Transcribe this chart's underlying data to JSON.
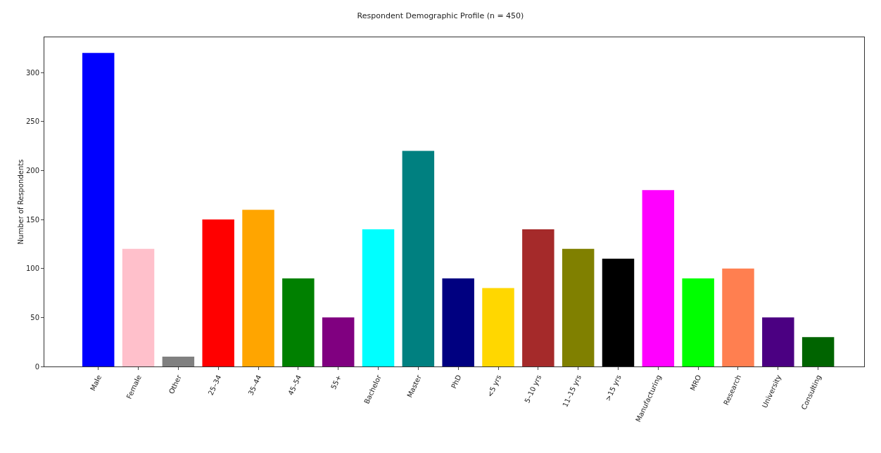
{
  "chart_data": {
    "type": "bar",
    "title": "Respondent Demographic Profile (n = 450)",
    "ylabel": "Number of Respondents",
    "categories": [
      "Male",
      "Female",
      "Other",
      "25–34",
      "35–44",
      "45–54",
      "55+",
      "Bachelor",
      "Master",
      "PhD",
      "<5 yrs",
      "5–10 yrs",
      "11–15 yrs",
      ">15 yrs",
      "Manufacturing",
      "MRO",
      "Research",
      "University",
      "Consulting"
    ],
    "values": [
      320,
      120,
      10,
      150,
      160,
      90,
      50,
      140,
      220,
      90,
      80,
      140,
      120,
      110,
      180,
      90,
      100,
      50,
      30
    ],
    "colors": [
      "#0000ff",
      "#ffc0cb",
      "#808080",
      "#ff0000",
      "#ffa500",
      "#008000",
      "#800080",
      "#00ffff",
      "#008080",
      "#000080",
      "#ffd700",
      "#a52a2a",
      "#808000",
      "#000000",
      "#ff00ff",
      "#00ff00",
      "#ff7f50",
      "#4b0082",
      "#006400"
    ],
    "ylim": [
      0,
      336
    ],
    "yticks": [
      0,
      50,
      100,
      150,
      200,
      250,
      300
    ],
    "grid": false,
    "legend": false
  }
}
